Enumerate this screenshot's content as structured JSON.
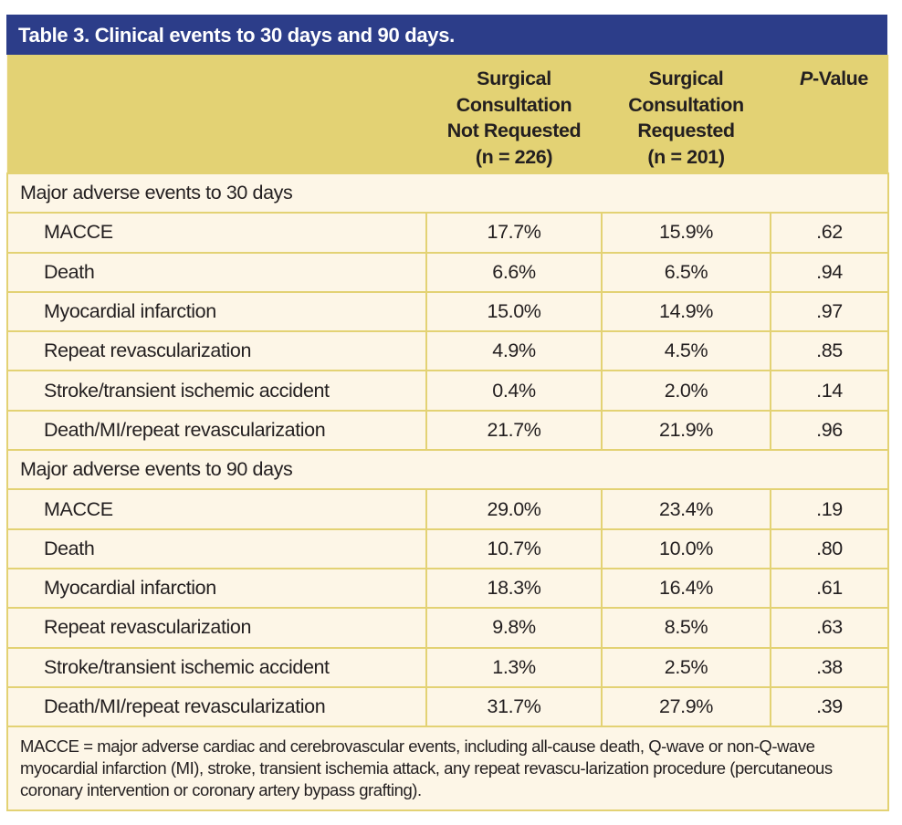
{
  "title": "Table 3. Clinical events to 30 days and 90 days.",
  "columns": [
    {
      "lines": [
        "Surgical",
        "Consultation",
        "Not Requested",
        "(n = 226)"
      ]
    },
    {
      "lines": [
        "Surgical",
        "Consultation",
        "Requested",
        "(n = 201)"
      ]
    },
    {
      "italic": "P",
      "rest": "-Value"
    }
  ],
  "sections": [
    {
      "label": "Major adverse events to 30 days",
      "rows": [
        {
          "label": "MACCE",
          "not_requested": "17.7%",
          "requested": "15.9%",
          "p": ".62"
        },
        {
          "label": "Death",
          "not_requested": "6.6%",
          "requested": "6.5%",
          "p": ".94"
        },
        {
          "label": "Myocardial infarction",
          "not_requested": "15.0%",
          "requested": "14.9%",
          "p": ".97"
        },
        {
          "label": "Repeat revascularization",
          "not_requested": "4.9%",
          "requested": "4.5%",
          "p": ".85"
        },
        {
          "label": "Stroke/transient ischemic accident",
          "not_requested": "0.4%",
          "requested": "2.0%",
          "p": ".14"
        },
        {
          "label": "Death/MI/repeat revascularization",
          "not_requested": "21.7%",
          "requested": "21.9%",
          "p": ".96"
        }
      ]
    },
    {
      "label": "Major adverse events to 90 days",
      "rows": [
        {
          "label": "MACCE",
          "not_requested": "29.0%",
          "requested": "23.4%",
          "p": ".19"
        },
        {
          "label": "Death",
          "not_requested": "10.7%",
          "requested": "10.0%",
          "p": ".80"
        },
        {
          "label": "Myocardial infarction",
          "not_requested": "18.3%",
          "requested": "16.4%",
          "p": ".61"
        },
        {
          "label": "Repeat revascularization",
          "not_requested": "9.8%",
          "requested": "8.5%",
          "p": ".63"
        },
        {
          "label": "Stroke/transient ischemic accident",
          "not_requested": "1.3%",
          "requested": "2.5%",
          "p": ".38"
        },
        {
          "label": "Death/MI/repeat revascularization",
          "not_requested": "31.7%",
          "requested": "27.9%",
          "p": ".39"
        }
      ]
    }
  ],
  "footnote": "MACCE = major adverse cardiac and cerebrovascular events, including all-cause death, Q-wave or non-Q-wave myocardial infarction (MI), stroke, transient ischemia attack, any repeat revascu-larization procedure (percutaneous coronary intervention or coronary artery bypass grafting).",
  "colors": {
    "title_bar": "#2c3d89",
    "header": "#e3d274",
    "body": "#fdf6e7"
  }
}
